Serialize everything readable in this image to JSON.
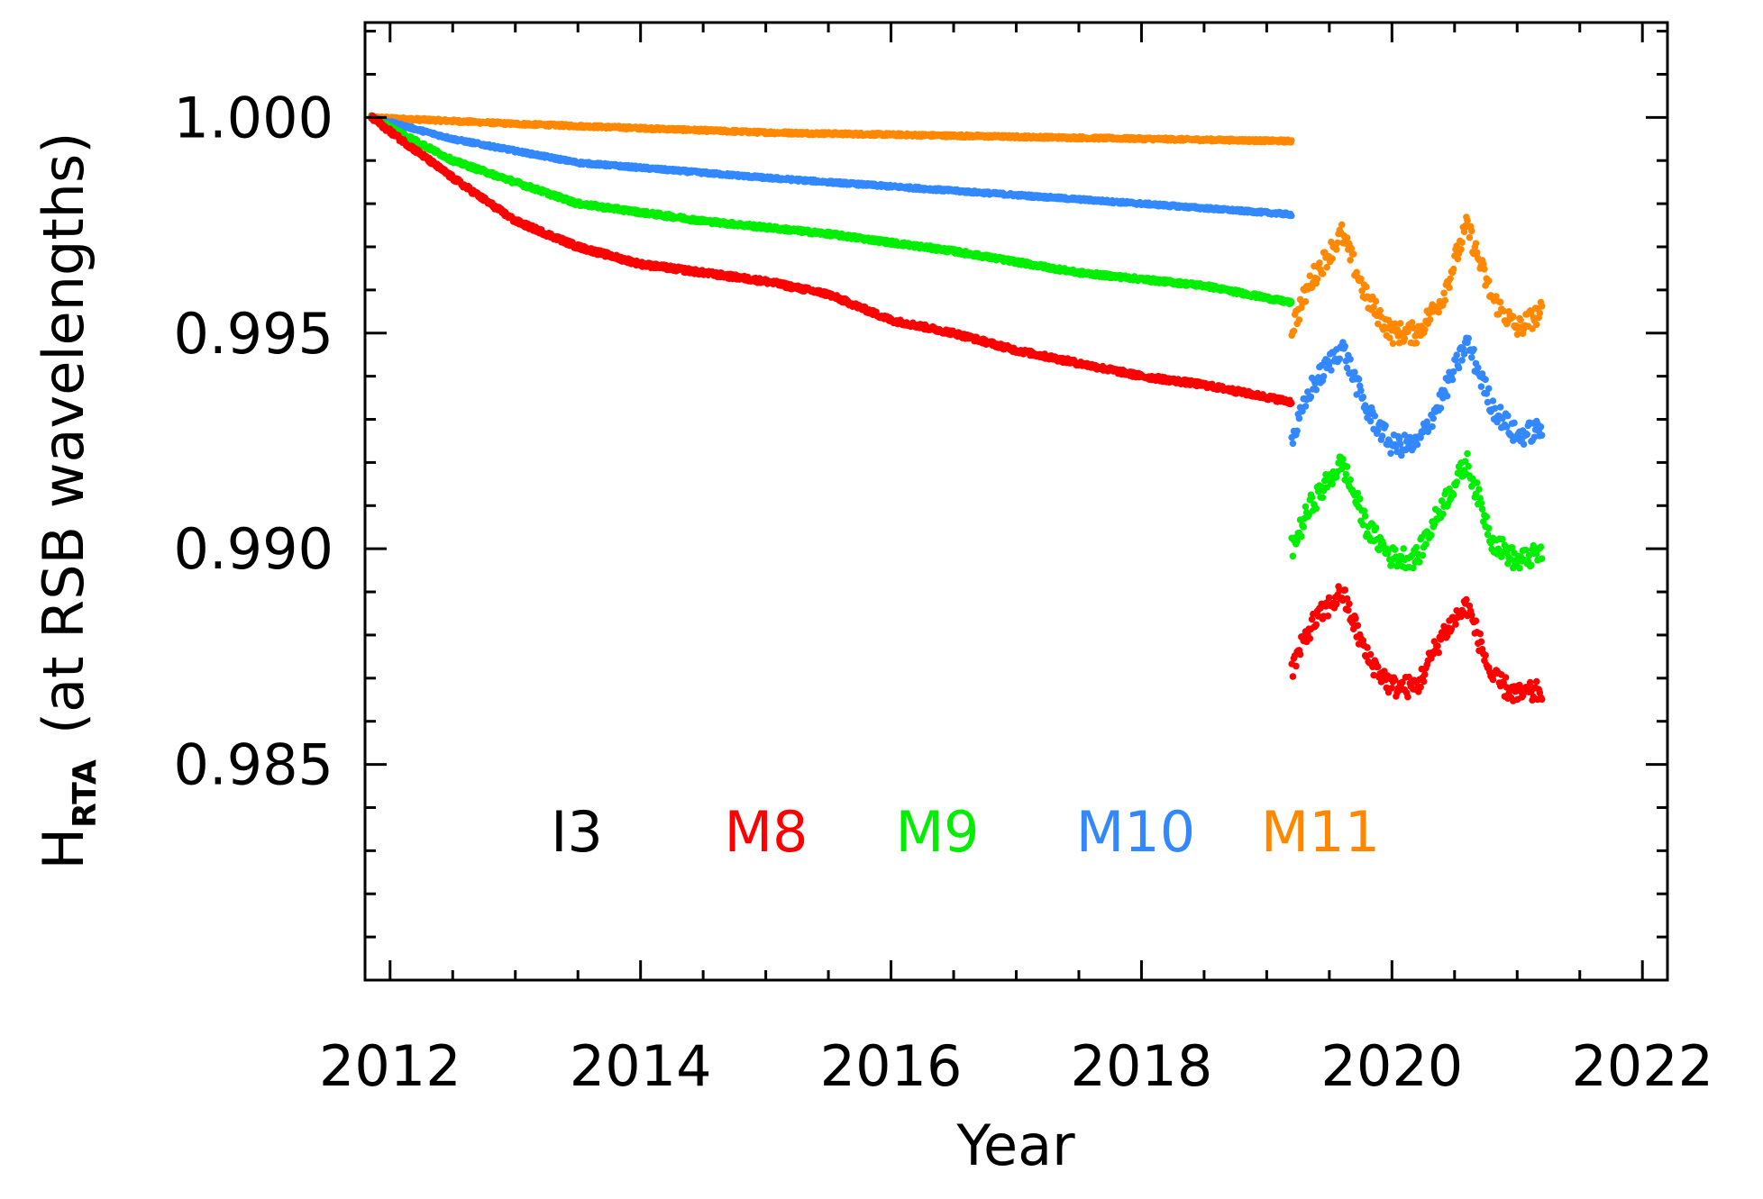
{
  "chart_data": {
    "type": "scatter",
    "title": "",
    "xlabel": "Year",
    "ylabel_main": "H",
    "ylabel_sub": "RTA",
    "ylabel_rest": "(at RSB wavelengths)",
    "xlim": [
      2011.8,
      2022.2
    ],
    "ylim": [
      0.98,
      1.0022
    ],
    "x_ticks": [
      2012,
      2014,
      2016,
      2018,
      2020,
      2022
    ],
    "x_tick_labels": [
      "2012",
      "2014",
      "2016",
      "2018",
      "2020",
      "2022"
    ],
    "y_ticks": [
      0.985,
      0.99,
      0.995,
      1.0
    ],
    "y_tick_labels": [
      "0.985",
      "0.990",
      "0.995",
      "1.000"
    ],
    "legend": [
      {
        "name": "I3",
        "color": "#000000"
      },
      {
        "name": "M8",
        "color": "#ff0000"
      },
      {
        "name": "M9",
        "color": "#00ee00"
      },
      {
        "name": "M10",
        "color": "#3388ff"
      },
      {
        "name": "M11",
        "color": "#ff8800"
      }
    ],
    "series": [
      {
        "name": "M11",
        "color": "#ff8800",
        "dense": {
          "x": [
            2011.85,
            2013,
            2015,
            2017,
            2019.2
          ],
          "y": [
            1.0,
            0.99985,
            0.99965,
            0.99955,
            0.99945
          ]
        },
        "sparse": {
          "x": [
            2019.2,
            2019.35,
            2019.6,
            2019.8,
            2020.0,
            2020.2,
            2020.4,
            2020.6,
            2020.8,
            2021.0,
            2021.2
          ],
          "y": [
            0.9951,
            0.9962,
            0.9973,
            0.9958,
            0.995,
            0.995,
            0.9958,
            0.9975,
            0.9958,
            0.9951,
            0.9955
          ]
        }
      },
      {
        "name": "M10",
        "color": "#3388ff",
        "dense": {
          "x": [
            2011.85,
            2012.5,
            2013.5,
            2015,
            2016.5,
            2018,
            2019.2
          ],
          "y": [
            1.0,
            0.9995,
            0.99895,
            0.9986,
            0.9983,
            0.998,
            0.99775
          ]
        },
        "sparse": {
          "x": [
            2019.2,
            2019.35,
            2019.6,
            2019.8,
            2020.0,
            2020.2,
            2020.4,
            2020.6,
            2020.8,
            2021.0,
            2021.2
          ],
          "y": [
            0.9925,
            0.9937,
            0.9947,
            0.9932,
            0.9924,
            0.9924,
            0.9935,
            0.9948,
            0.9933,
            0.9926,
            0.9928
          ]
        }
      },
      {
        "name": "M9",
        "color": "#00ee00",
        "dense": {
          "x": [
            2011.85,
            2012.5,
            2013.5,
            2014.5,
            2015.5,
            2016.5,
            2017.5,
            2018.5,
            2019.2
          ],
          "y": [
            1.0,
            0.999,
            0.998,
            0.9976,
            0.9973,
            0.9969,
            0.9964,
            0.9961,
            0.9957
          ]
        },
        "sparse": {
          "x": [
            2019.2,
            2019.35,
            2019.6,
            2019.8,
            2020.0,
            2020.2,
            2020.4,
            2020.6,
            2020.8,
            2021.0,
            2021.2
          ],
          "y": [
            0.99,
            0.991,
            0.992,
            0.9905,
            0.9898,
            0.9898,
            0.991,
            0.992,
            0.9902,
            0.9897,
            0.9899
          ]
        }
      },
      {
        "name": "M8",
        "color": "#ff0000",
        "dense": {
          "x": [
            2011.85,
            2012.5,
            2013.0,
            2013.5,
            2014.0,
            2014.5,
            2015.0,
            2015.5,
            2016.0,
            2016.5,
            2017.0,
            2017.5,
            2018.0,
            2018.5,
            2019.2
          ],
          "y": [
            1.0,
            0.9986,
            0.9976,
            0.997,
            0.9966,
            0.9964,
            0.9962,
            0.9959,
            0.9953,
            0.995,
            0.9946,
            0.9943,
            0.994,
            0.9938,
            0.9934
          ]
        },
        "sparse": {
          "x": [
            2019.2,
            2019.35,
            2019.6,
            2019.8,
            2020.0,
            2020.2,
            2020.4,
            2020.6,
            2020.8,
            2021.0,
            2021.2
          ],
          "y": [
            0.9872,
            0.9882,
            0.989,
            0.9875,
            0.9868,
            0.9868,
            0.988,
            0.9887,
            0.987,
            0.9866,
            0.9867
          ]
        }
      }
    ]
  }
}
